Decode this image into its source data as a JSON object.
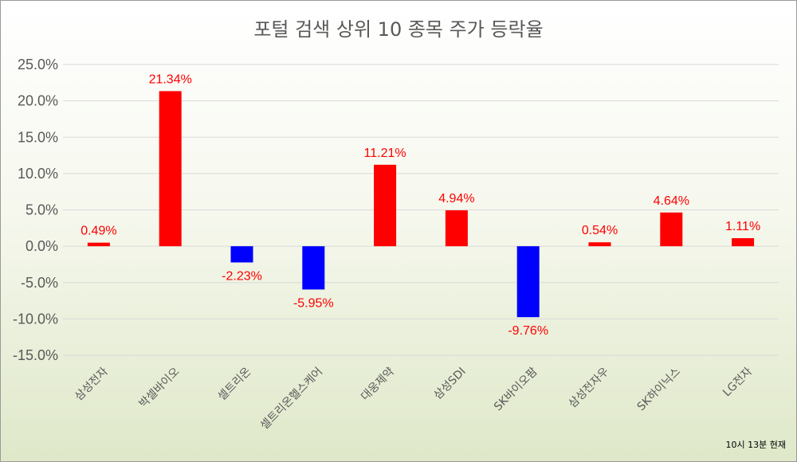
{
  "chart_data": {
    "type": "bar",
    "title": "포털 검색 상위 10 종목 주가 등락율",
    "categories": [
      "삼성전자",
      "박셀바이오",
      "셀트리온",
      "셀트리온헬스케어",
      "대웅제약",
      "삼성SDI",
      "SK바이오팜",
      "삼성전자우",
      "SK하이닉스",
      "LG전자"
    ],
    "values": [
      0.49,
      21.34,
      -2.23,
      -5.95,
      11.21,
      4.94,
      -9.76,
      0.54,
      4.64,
      1.11
    ],
    "data_labels": [
      "0.49%",
      "21.34%",
      "-2.23%",
      "-5.95%",
      "11.21%",
      "4.94%",
      "-9.76%",
      "0.54%",
      "4.64%",
      "1.11%"
    ],
    "y_ticks": [
      25,
      20,
      15,
      10,
      5,
      0,
      -5,
      -10,
      -15
    ],
    "y_tick_labels": [
      "25.0%",
      "20.0%",
      "15.0%",
      "10.0%",
      "5.0%",
      "0.0%",
      "-5.0%",
      "-10.0%",
      "-15.0%"
    ],
    "ylim": [
      -15,
      25
    ],
    "grid": true,
    "legend": "none",
    "colors": {
      "positive": "#ff0000",
      "negative": "#0000ff",
      "label": "#ff0000",
      "grid": "#d9d9d9",
      "text": "#595959"
    },
    "note": "10시 13분 현재"
  }
}
